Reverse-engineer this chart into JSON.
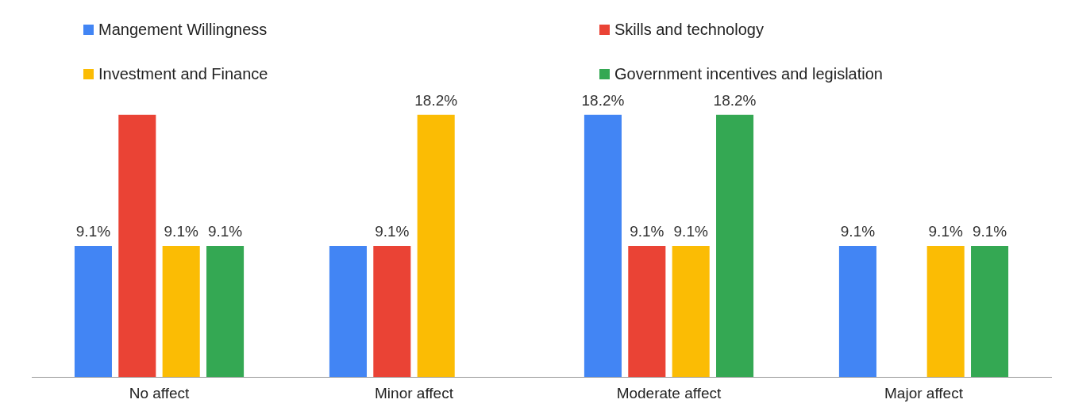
{
  "chart_data": {
    "type": "bar",
    "categories": [
      "No affect",
      "Minor affect",
      "Moderate affect",
      "Major affect"
    ],
    "legend": "top",
    "series": [
      {
        "name": "Mangement Willingness",
        "color": "#4285f4",
        "values": [
          9.1,
          9.1,
          18.2,
          9.1
        ],
        "value_labels": [
          "9.1%",
          null,
          "18.2%",
          "9.1%"
        ]
      },
      {
        "name": "Skills and technology",
        "color": "#ea4335",
        "values": [
          18.2,
          9.1,
          9.1,
          null
        ],
        "value_labels": [
          null,
          "9.1%",
          "9.1%",
          null
        ]
      },
      {
        "name": "Investment and Finance",
        "color": "#fbbc04",
        "values": [
          9.1,
          18.2,
          9.1,
          9.1
        ],
        "value_labels": [
          "9.1%",
          "18.2%",
          "9.1%",
          "9.1%"
        ]
      },
      {
        "name": "Government incentives and legislation",
        "color": "#34a853",
        "values": [
          9.1,
          null,
          18.2,
          9.1
        ],
        "value_labels": [
          "9.1%",
          null,
          "18.2%",
          "9.1%"
        ]
      }
    ]
  }
}
